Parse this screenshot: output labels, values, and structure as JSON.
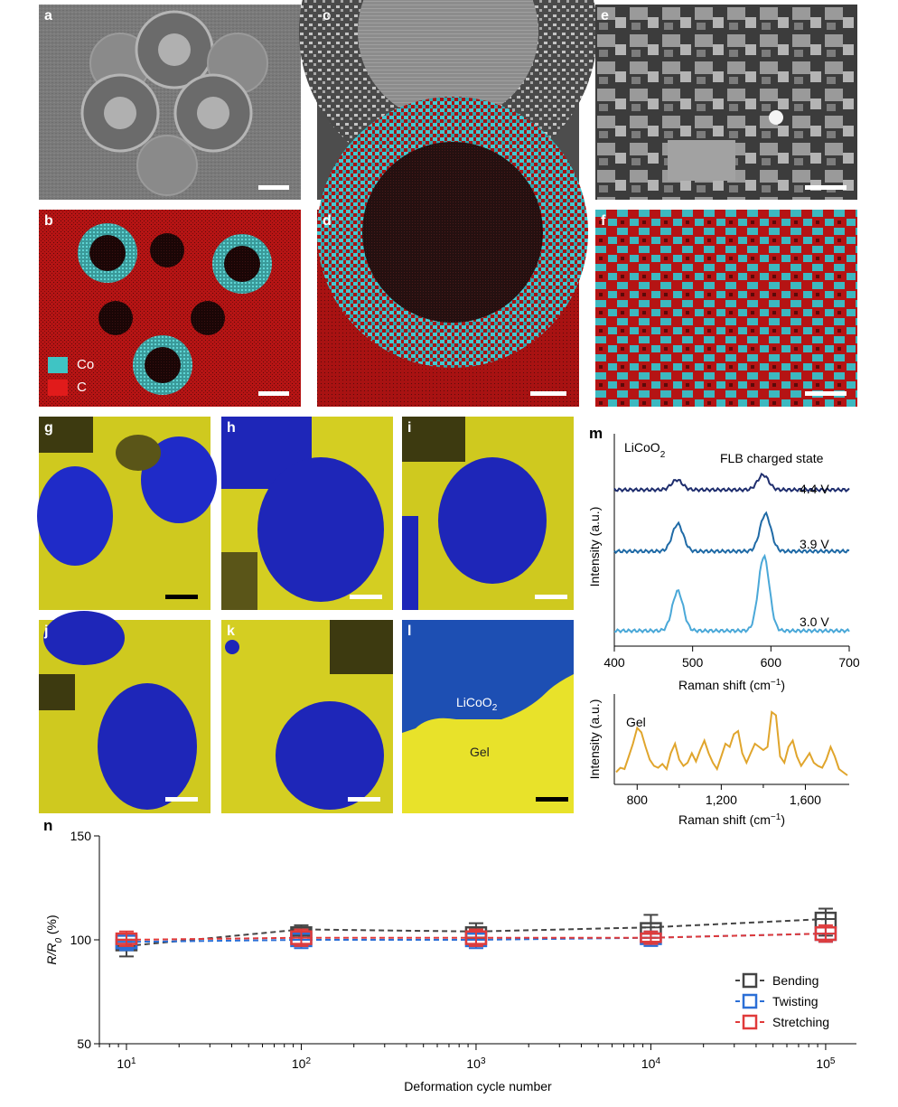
{
  "figure": {
    "panel_labels": {
      "a": "a",
      "b": "b",
      "c": "c",
      "d": "d",
      "e": "e",
      "f": "f",
      "g": "g",
      "h": "h",
      "i": "i",
      "j": "j",
      "k": "k",
      "l": "l",
      "m": "m",
      "n": "n"
    },
    "legend_b": [
      {
        "label": "Co",
        "color": "#3fc4c4"
      },
      {
        "label": "C",
        "color": "#e11b1b"
      }
    ],
    "panel_l": {
      "licoo2_main": "LiCoO",
      "licoo2_sub": "2",
      "gel": "Gel"
    }
  },
  "raman_top": {
    "title_main": "LiCoO",
    "title_sub": "2",
    "state_label": "FLB charged state",
    "ylabel": "Intensity (a.u.)",
    "xlabel_main": "Raman shift (cm",
    "xlabel_sup": "−1",
    "xlabel_end": ")",
    "xticks": [
      "400",
      "500",
      "600",
      "700"
    ]
  },
  "raman_bottom": {
    "label": "Gel",
    "ylabel": "Intensity (a.u.)",
    "xlabel_main": "Raman shift (cm",
    "xlabel_sup": "−1",
    "xlabel_end": ")",
    "xticks": [
      "800",
      "1,200",
      "1,600"
    ]
  },
  "chart_data": [
    {
      "type": "line",
      "panel": "m-top",
      "xlabel": "Raman shift (cm−1)",
      "ylabel": "Intensity (a.u.)",
      "xlim": [
        400,
        700
      ],
      "series": [
        {
          "name": "4.4 V",
          "color": "#1f2e6e",
          "peaks": [
            {
              "x": 480,
              "h": 0.2
            },
            {
              "x": 590,
              "h": 0.3
            }
          ]
        },
        {
          "name": "3.9 V",
          "color": "#1f6aa6",
          "peaks": [
            {
              "x": 481,
              "h": 0.55
            },
            {
              "x": 593,
              "h": 0.75
            }
          ]
        },
        {
          "name": "3.0 V",
          "color": "#4aa8d8",
          "peaks": [
            {
              "x": 481,
              "h": 0.8
            },
            {
              "x": 591,
              "h": 1.5
            }
          ]
        }
      ]
    },
    {
      "type": "line",
      "panel": "m-bottom",
      "xlabel": "Raman shift (cm−1)",
      "ylabel": "Intensity (a.u.)",
      "xlim": [
        700,
        1800
      ],
      "series": [
        {
          "name": "Gel",
          "color": "#e0a52c",
          "x": [
            700,
            720,
            740,
            760,
            780,
            800,
            820,
            840,
            860,
            880,
            900,
            920,
            940,
            960,
            980,
            1000,
            1020,
            1040,
            1060,
            1080,
            1100,
            1120,
            1140,
            1160,
            1180,
            1200,
            1220,
            1240,
            1260,
            1280,
            1300,
            1320,
            1340,
            1360,
            1380,
            1400,
            1420,
            1440,
            1460,
            1480,
            1500,
            1520,
            1540,
            1560,
            1580,
            1600,
            1620,
            1640,
            1660,
            1680,
            1700,
            1720,
            1740,
            1760,
            1780,
            1800
          ],
          "y": [
            0.05,
            0.12,
            0.1,
            0.3,
            0.5,
            0.75,
            0.68,
            0.45,
            0.25,
            0.15,
            0.12,
            0.18,
            0.1,
            0.35,
            0.5,
            0.25,
            0.15,
            0.2,
            0.35,
            0.22,
            0.4,
            0.55,
            0.35,
            0.2,
            0.1,
            0.3,
            0.5,
            0.45,
            0.65,
            0.7,
            0.35,
            0.2,
            0.35,
            0.5,
            0.45,
            0.4,
            0.45,
            1.0,
            0.95,
            0.3,
            0.2,
            0.45,
            0.55,
            0.3,
            0.15,
            0.25,
            0.35,
            0.2,
            0.15,
            0.12,
            0.25,
            0.45,
            0.3,
            0.1,
            0.05,
            0.0
          ]
        }
      ]
    },
    {
      "type": "scatter",
      "panel": "n",
      "title": "",
      "xlabel": "Deformation cycle number",
      "ylabel": "R/R0 (%)",
      "xscale": "log",
      "xlim": [
        7,
        150000
      ],
      "ylim": [
        50,
        150
      ],
      "yticks": [
        50,
        100,
        150
      ],
      "xticks": [
        "10^1",
        "10^2",
        "10^3",
        "10^4",
        "10^5"
      ],
      "series": [
        {
          "name": "Bending",
          "color": "#444444",
          "x": [
            10,
            100,
            1000,
            10000,
            100000
          ],
          "y": [
            97,
            105,
            104,
            106,
            110
          ],
          "q1": [
            95,
            102,
            101,
            103,
            106
          ],
          "q3": [
            100,
            106,
            106,
            108,
            113
          ],
          "whisker_low": [
            92,
            100,
            98,
            101,
            102
          ],
          "whisker_high": [
            102,
            107,
            108,
            112,
            115
          ]
        },
        {
          "name": "Twisting",
          "color": "#2b6fd6",
          "x": [
            10,
            100,
            1000,
            10000,
            100000
          ],
          "y": [
            99,
            100,
            100,
            101,
            103
          ],
          "q1": [
            96,
            97,
            97,
            98,
            100
          ],
          "q3": [
            102,
            103,
            103,
            103,
            106
          ],
          "whisker_low": [
            95,
            96,
            96,
            97,
            99
          ],
          "whisker_high": [
            103,
            103,
            103,
            104,
            106
          ]
        },
        {
          "name": "Stretching",
          "color": "#e03a3a",
          "x": [
            10,
            100,
            1000,
            10000,
            100000
          ],
          "y": [
            100,
            101,
            101,
            101,
            103
          ],
          "q1": [
            98,
            98,
            98,
            99,
            100
          ],
          "q3": [
            103,
            104,
            104,
            103,
            106
          ],
          "whisker_low": [
            97,
            97,
            97,
            98,
            99
          ],
          "whisker_high": [
            104,
            105,
            105,
            104,
            107
          ]
        }
      ],
      "legend_position": "bottom-right"
    }
  ],
  "raman_top_labels": [
    "4.4 V",
    "3.9 V",
    "3.0 V"
  ]
}
